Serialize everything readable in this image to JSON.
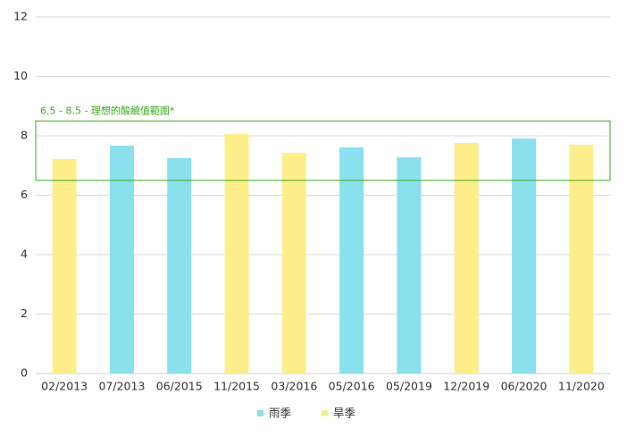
{
  "chart_data": {
    "type": "bar",
    "categories": [
      "02/2013",
      "07/2013",
      "06/2015",
      "11/2015",
      "03/2016",
      "05/2016",
      "05/2019",
      "12/2019",
      "06/2020",
      "11/2020"
    ],
    "series": [
      {
        "name": "雨季",
        "color": "#8ae0ec",
        "values": [
          null,
          7.67,
          7.25,
          null,
          null,
          7.61,
          7.28,
          null,
          7.91,
          null
        ]
      },
      {
        "name": "旱季",
        "color": "#fdee8a",
        "values": [
          7.22,
          null,
          null,
          8.06,
          7.43,
          null,
          null,
          7.76,
          null,
          7.7
        ]
      }
    ],
    "band": {
      "range": [
        6.5,
        8.5
      ],
      "label": "6.5 - 8.5 - 理想的酸鹼值範圍*",
      "color": "#3aaa1e"
    },
    "ylim": [
      0,
      12
    ],
    "yticks": [
      0,
      2,
      4,
      6,
      8,
      10,
      12
    ],
    "grid": true,
    "legend": "bottom"
  }
}
